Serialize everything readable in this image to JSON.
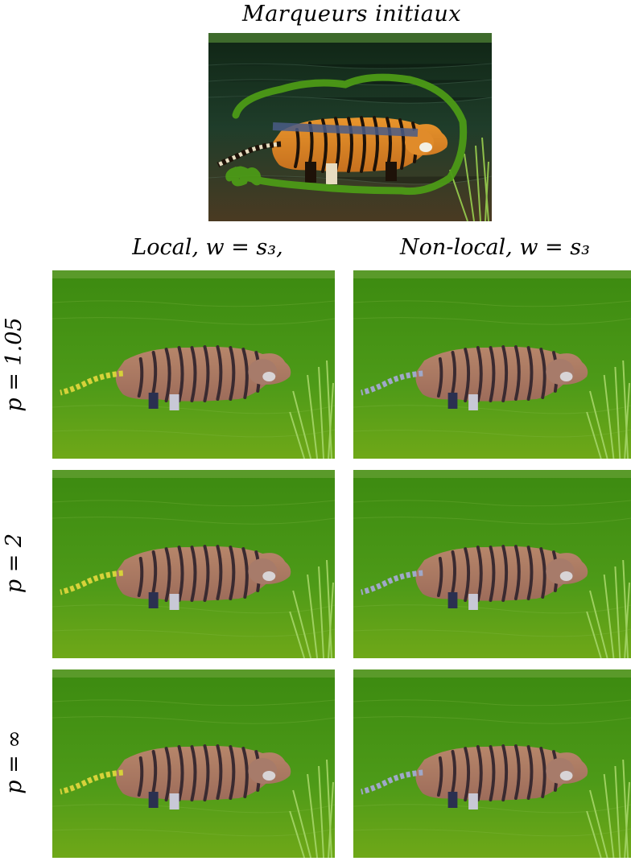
{
  "figure": {
    "top_title": "Marqueurs initiaux",
    "columns": [
      {
        "label_text": "Local, ",
        "label_math": "w = s₃,"
      },
      {
        "label_text": "Non-local, ",
        "label_math": "w = s₃"
      }
    ],
    "rows": [
      {
        "p": "p = 1.05"
      },
      {
        "p": "p = 2"
      },
      {
        "p": "p = ∞"
      }
    ]
  },
  "colors": {
    "water": "#1c3a24",
    "water_green": "#3f8f12",
    "tiger": "#d98a2a",
    "stripe": "#1e1208",
    "marker_green": "#4c9a16",
    "marker_blue": "#4a5c86"
  }
}
